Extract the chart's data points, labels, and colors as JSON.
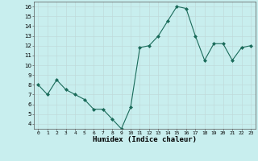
{
  "x": [
    0,
    1,
    2,
    3,
    4,
    5,
    6,
    7,
    8,
    9,
    10,
    11,
    12,
    13,
    14,
    15,
    16,
    17,
    18,
    19,
    20,
    21,
    22,
    23
  ],
  "y": [
    8.0,
    7.0,
    8.5,
    7.5,
    7.0,
    6.5,
    5.5,
    5.5,
    4.5,
    3.5,
    5.7,
    11.8,
    12.0,
    13.0,
    14.5,
    16.0,
    15.8,
    13.0,
    10.5,
    12.2,
    12.2,
    10.5,
    11.8,
    12.0
  ],
  "ylim": [
    3.5,
    16.5
  ],
  "xlim": [
    -0.5,
    23.5
  ],
  "yticks": [
    4,
    5,
    6,
    7,
    8,
    9,
    10,
    11,
    12,
    13,
    14,
    15,
    16
  ],
  "xticks": [
    0,
    1,
    2,
    3,
    4,
    5,
    6,
    7,
    8,
    9,
    10,
    11,
    12,
    13,
    14,
    15,
    16,
    17,
    18,
    19,
    20,
    21,
    22,
    23
  ],
  "xlabel": "Humidex (Indice chaleur)",
  "line_color": "#1a6b5a",
  "marker_color": "#1a6b5a",
  "bg_color": "#c8eeee",
  "grid_color": "#c0dada"
}
